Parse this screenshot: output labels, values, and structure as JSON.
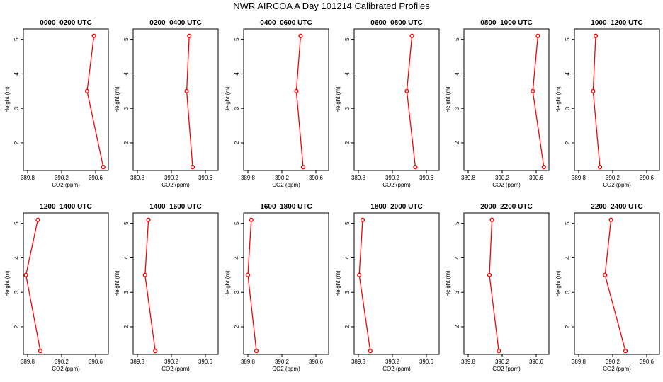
{
  "page": {
    "title": "NWR AIRCOA A  Day 101214  Calibrated Profiles"
  },
  "colors": {
    "series_line": "#ff0000",
    "marker_outer": "#ff0000",
    "marker_inner": "#8b0000",
    "axis": "#000000"
  },
  "chart_data": [
    {
      "type": "line",
      "title": "0000–0200 UTC",
      "xlabel": "CO2 (ppm)",
      "ylabel": "Height (m)",
      "xlim": [
        389.75,
        390.75
      ],
      "ylim": [
        1.2,
        5.3
      ],
      "x_ticks": [
        389.8,
        390.2,
        390.6
      ],
      "x_tick_labels": [
        "389.8",
        "390.2",
        "390.6"
      ],
      "y_ticks": [
        2,
        3,
        4,
        5
      ],
      "y_tick_labels": [
        "2",
        "3",
        "4",
        "5"
      ],
      "x": [
        390.58,
        390.5,
        390.69
      ],
      "y": [
        5.1,
        3.5,
        1.3
      ]
    },
    {
      "type": "line",
      "title": "0200–0400 UTC",
      "xlabel": "CO2 (ppm)",
      "ylabel": "Height (m)",
      "xlim": [
        389.75,
        390.75
      ],
      "ylim": [
        1.2,
        5.3
      ],
      "x_ticks": [
        389.8,
        390.2,
        390.6
      ],
      "x_tick_labels": [
        "389.8",
        "390.2",
        "390.6"
      ],
      "y_ticks": [
        2,
        3,
        4,
        5
      ],
      "y_tick_labels": [
        "2",
        "3",
        "4",
        "5"
      ],
      "x": [
        390.41,
        390.38,
        390.45
      ],
      "y": [
        5.1,
        3.5,
        1.3
      ]
    },
    {
      "type": "line",
      "title": "0400–0600 UTC",
      "xlabel": "CO2 (ppm)",
      "ylabel": "Height (m)",
      "xlim": [
        389.75,
        390.75
      ],
      "ylim": [
        1.2,
        5.3
      ],
      "x_ticks": [
        389.8,
        390.2,
        390.6
      ],
      "x_tick_labels": [
        "389.8",
        "390.2",
        "390.6"
      ],
      "y_ticks": [
        2,
        3,
        4,
        5
      ],
      "y_tick_labels": [
        "2",
        "3",
        "4",
        "5"
      ],
      "x": [
        390.42,
        390.37,
        390.45
      ],
      "y": [
        5.1,
        3.5,
        1.3
      ]
    },
    {
      "type": "line",
      "title": "0600–0800 UTC",
      "xlabel": "CO2 (ppm)",
      "ylabel": "Height (m)",
      "xlim": [
        389.75,
        390.75
      ],
      "ylim": [
        1.2,
        5.3
      ],
      "x_ticks": [
        389.8,
        390.2,
        390.6
      ],
      "x_tick_labels": [
        "389.8",
        "390.2",
        "390.6"
      ],
      "y_ticks": [
        2,
        3,
        4,
        5
      ],
      "y_tick_labels": [
        "2",
        "3",
        "4",
        "5"
      ],
      "x": [
        390.43,
        390.37,
        390.47
      ],
      "y": [
        5.1,
        3.5,
        1.3
      ]
    },
    {
      "type": "line",
      "title": "0800–1000 UTC",
      "xlabel": "CO2 (ppm)",
      "ylabel": "Height (m)",
      "xlim": [
        389.75,
        390.75
      ],
      "ylim": [
        1.2,
        5.3
      ],
      "x_ticks": [
        389.8,
        390.2,
        390.6
      ],
      "x_tick_labels": [
        "389.8",
        "390.2",
        "390.6"
      ],
      "y_ticks": [
        2,
        3,
        4,
        5
      ],
      "y_tick_labels": [
        "2",
        "3",
        "4",
        "5"
      ],
      "x": [
        390.62,
        390.56,
        390.69
      ],
      "y": [
        5.1,
        3.5,
        1.3
      ]
    },
    {
      "type": "line",
      "title": "1000–1200 UTC",
      "xlabel": "CO2 (ppm)",
      "ylabel": "Height (m)",
      "xlim": [
        389.75,
        390.75
      ],
      "ylim": [
        1.2,
        5.3
      ],
      "x_ticks": [
        389.8,
        390.2,
        390.6
      ],
      "x_tick_labels": [
        "389.8",
        "390.2",
        "390.6"
      ],
      "y_ticks": [
        2,
        3,
        4,
        5
      ],
      "y_tick_labels": [
        "2",
        "3",
        "4",
        "5"
      ],
      "x": [
        390.0,
        389.97,
        390.05
      ],
      "y": [
        5.1,
        3.5,
        1.3
      ]
    },
    {
      "type": "line",
      "title": "1200–1400 UTC",
      "xlabel": "CO2 (ppm)",
      "ylabel": "Height (m)",
      "xlim": [
        389.75,
        390.75
      ],
      "ylim": [
        1.2,
        5.3
      ],
      "x_ticks": [
        389.8,
        390.2,
        390.6
      ],
      "x_tick_labels": [
        "389.8",
        "390.2",
        "390.6"
      ],
      "y_ticks": [
        2,
        3,
        4,
        5
      ],
      "y_tick_labels": [
        "2",
        "3",
        "4",
        "5"
      ],
      "x": [
        389.92,
        389.78,
        389.95
      ],
      "y": [
        5.1,
        3.5,
        1.3
      ]
    },
    {
      "type": "line",
      "title": "1400–1600 UTC",
      "xlabel": "CO2 (ppm)",
      "ylabel": "Height (m)",
      "xlim": [
        389.75,
        390.75
      ],
      "ylim": [
        1.2,
        5.3
      ],
      "x_ticks": [
        389.8,
        390.2,
        390.6
      ],
      "x_tick_labels": [
        "389.8",
        "390.2",
        "390.6"
      ],
      "y_ticks": [
        2,
        3,
        4,
        5
      ],
      "y_tick_labels": [
        "2",
        "3",
        "4",
        "5"
      ],
      "x": [
        389.93,
        389.89,
        390.01
      ],
      "y": [
        5.1,
        3.5,
        1.3
      ]
    },
    {
      "type": "line",
      "title": "1600–1800 UTC",
      "xlabel": "CO2 (ppm)",
      "ylabel": "Height (m)",
      "xlim": [
        389.75,
        390.75
      ],
      "ylim": [
        1.2,
        5.3
      ],
      "x_ticks": [
        389.8,
        390.2,
        390.6
      ],
      "x_tick_labels": [
        "389.8",
        "390.2",
        "390.6"
      ],
      "y_ticks": [
        2,
        3,
        4,
        5
      ],
      "y_tick_labels": [
        "2",
        "3",
        "4",
        "5"
      ],
      "x": [
        389.84,
        389.8,
        389.9
      ],
      "y": [
        5.1,
        3.5,
        1.3
      ]
    },
    {
      "type": "line",
      "title": "1800–2000 UTC",
      "xlabel": "CO2 (ppm)",
      "ylabel": "Height (m)",
      "xlim": [
        389.75,
        390.75
      ],
      "ylim": [
        1.2,
        5.3
      ],
      "x_ticks": [
        389.8,
        390.2,
        390.6
      ],
      "x_tick_labels": [
        "389.8",
        "390.2",
        "390.6"
      ],
      "y_ticks": [
        2,
        3,
        4,
        5
      ],
      "y_tick_labels": [
        "2",
        "3",
        "4",
        "5"
      ],
      "x": [
        389.85,
        389.81,
        389.94
      ],
      "y": [
        5.1,
        3.5,
        1.3
      ]
    },
    {
      "type": "line",
      "title": "2000–2200 UTC",
      "xlabel": "CO2 (ppm)",
      "ylabel": "Height (m)",
      "xlim": [
        389.75,
        390.75
      ],
      "ylim": [
        1.2,
        5.3
      ],
      "x_ticks": [
        389.8,
        390.2,
        390.6
      ],
      "x_tick_labels": [
        "389.8",
        "390.2",
        "390.6"
      ],
      "y_ticks": [
        2,
        3,
        4,
        5
      ],
      "y_tick_labels": [
        "2",
        "3",
        "4",
        "5"
      ],
      "x": [
        390.08,
        390.05,
        390.16
      ],
      "y": [
        5.1,
        3.5,
        1.3
      ]
    },
    {
      "type": "line",
      "title": "2200–2400 UTC",
      "xlabel": "CO2 (ppm)",
      "ylabel": "Height (m)",
      "xlim": [
        389.75,
        390.75
      ],
      "ylim": [
        1.2,
        5.3
      ],
      "x_ticks": [
        389.8,
        390.2,
        390.6
      ],
      "x_tick_labels": [
        "389.8",
        "390.2",
        "390.6"
      ],
      "y_ticks": [
        2,
        3,
        4,
        5
      ],
      "y_tick_labels": [
        "2",
        "3",
        "4",
        "5"
      ],
      "x": [
        390.18,
        390.11,
        390.35
      ],
      "y": [
        5.1,
        3.5,
        1.3
      ]
    }
  ]
}
